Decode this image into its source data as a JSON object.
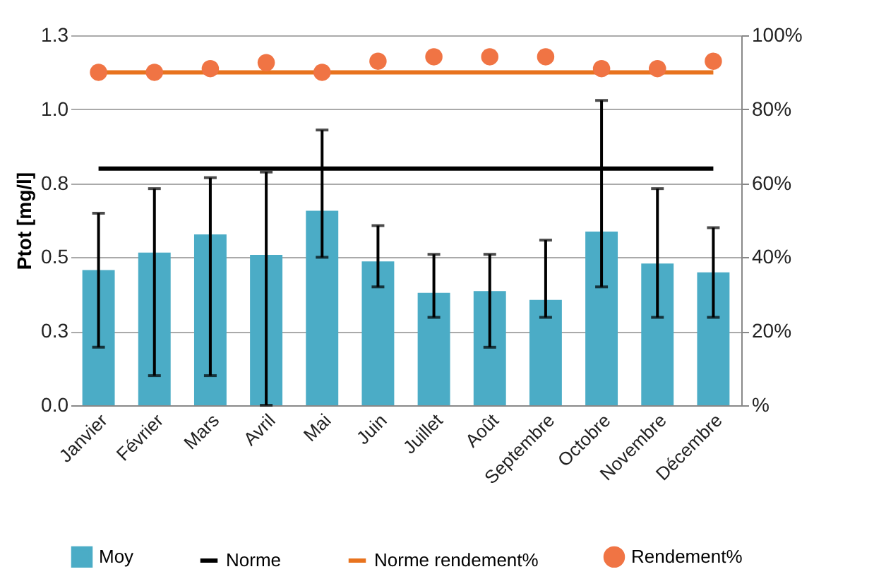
{
  "chart_data": {
    "type": "bar",
    "ylabel": "Ptot [mg/l]",
    "categories": [
      "Janvier",
      "Février",
      "Mars",
      "Avril",
      "Mai",
      "Juin",
      "Juillet",
      "Août",
      "Septembre",
      "Octobre",
      "Novembre",
      "Décembre"
    ],
    "series": [
      {
        "name": "Moy",
        "color": "#4bacc6",
        "values": [
          0.457,
          0.516,
          0.577,
          0.508,
          0.657,
          0.486,
          0.38,
          0.386,
          0.356,
          0.587,
          0.479,
          0.449
        ],
        "errors": [
          [
            0.196,
            0.649
          ],
          [
            0.1,
            0.732
          ],
          [
            0.1,
            0.769
          ],
          [
            0,
            0.788
          ],
          [
            0.5,
            0.93
          ],
          [
            0.4,
            0.607
          ],
          [
            0.297,
            0.51
          ],
          [
            0.196,
            0.51
          ],
          [
            0.297,
            0.558
          ],
          [
            0.4,
            1.03
          ],
          [
            0.297,
            0.732
          ],
          [
            0.297,
            0.6
          ]
        ]
      },
      {
        "name": "Norme",
        "type": "line",
        "color": "#000000",
        "values": [
          0.8,
          0.8,
          0.8,
          0.8,
          0.8,
          0.8,
          0.8,
          0.8,
          0.8,
          0.8,
          0.8,
          0.8
        ]
      },
      {
        "name": "Norme rendement%",
        "type": "line",
        "color": "#e8731e",
        "axis": "y2",
        "values": [
          90,
          90,
          90,
          90,
          90,
          90,
          90,
          90,
          90,
          90,
          90,
          90
        ]
      },
      {
        "name": "Rendement%",
        "type": "scatter",
        "color": "#f07444",
        "axis": "y2",
        "marker": "circle",
        "values": [
          90,
          90,
          91,
          92.6,
          90,
          93,
          94.2,
          94.2,
          94.2,
          91,
          91,
          93
        ]
      }
    ],
    "ylim": [
      0,
      1.25
    ],
    "yticks": [
      {
        "value": 0,
        "label": "0.0"
      },
      {
        "value": 0.25,
        "label": "0.3"
      },
      {
        "value": 0.5,
        "label": "0.5"
      },
      {
        "value": 0.75,
        "label": "0.8"
      },
      {
        "value": 1,
        "label": "1.0"
      },
      {
        "value": 1.25,
        "label": "1.3"
      }
    ],
    "y2lim": [
      0,
      100
    ],
    "y2ticks": [
      {
        "value": 0,
        "label": "%"
      },
      {
        "value": 20,
        "label": "20%"
      },
      {
        "value": 40,
        "label": "40%"
      },
      {
        "value": 60,
        "label": "60%"
      },
      {
        "value": 80,
        "label": "80%"
      },
      {
        "value": 100,
        "label": "100%"
      }
    ],
    "grid": "y",
    "legend": "bottom"
  }
}
